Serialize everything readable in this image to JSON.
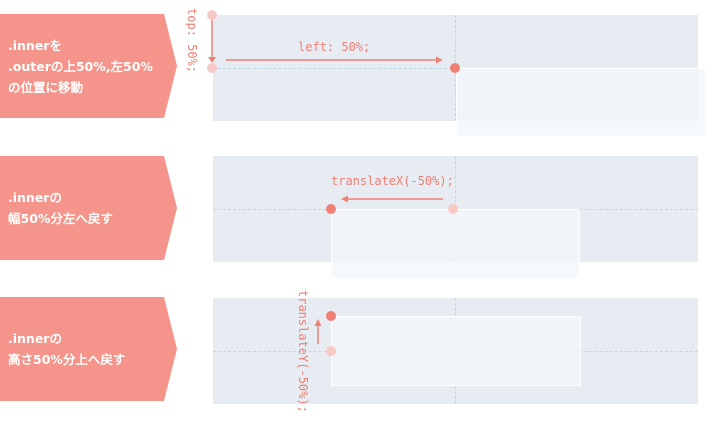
{
  "steps": [
    {
      "label_lines": [
        ".innerを",
        ".outerの上50%,左50%",
        "の位置に移動"
      ],
      "annotations": [
        "top: 50%;",
        "left: 50%;"
      ]
    },
    {
      "label_lines": [
        ".innerの",
        "幅50%分左へ戻す"
      ],
      "annotations": [
        "translateX(-50%);"
      ]
    },
    {
      "label_lines": [
        ".innerの",
        "高さ50%分上へ戻す"
      ],
      "annotations": [
        "translateY(-50%);"
      ]
    }
  ],
  "colors": {
    "label_bg": "#f4948a",
    "accent": "#f07f74",
    "accent_faint": "#f7c9c4",
    "outer_bg": "#e7ecf3",
    "guide": "#bcd8ea"
  }
}
